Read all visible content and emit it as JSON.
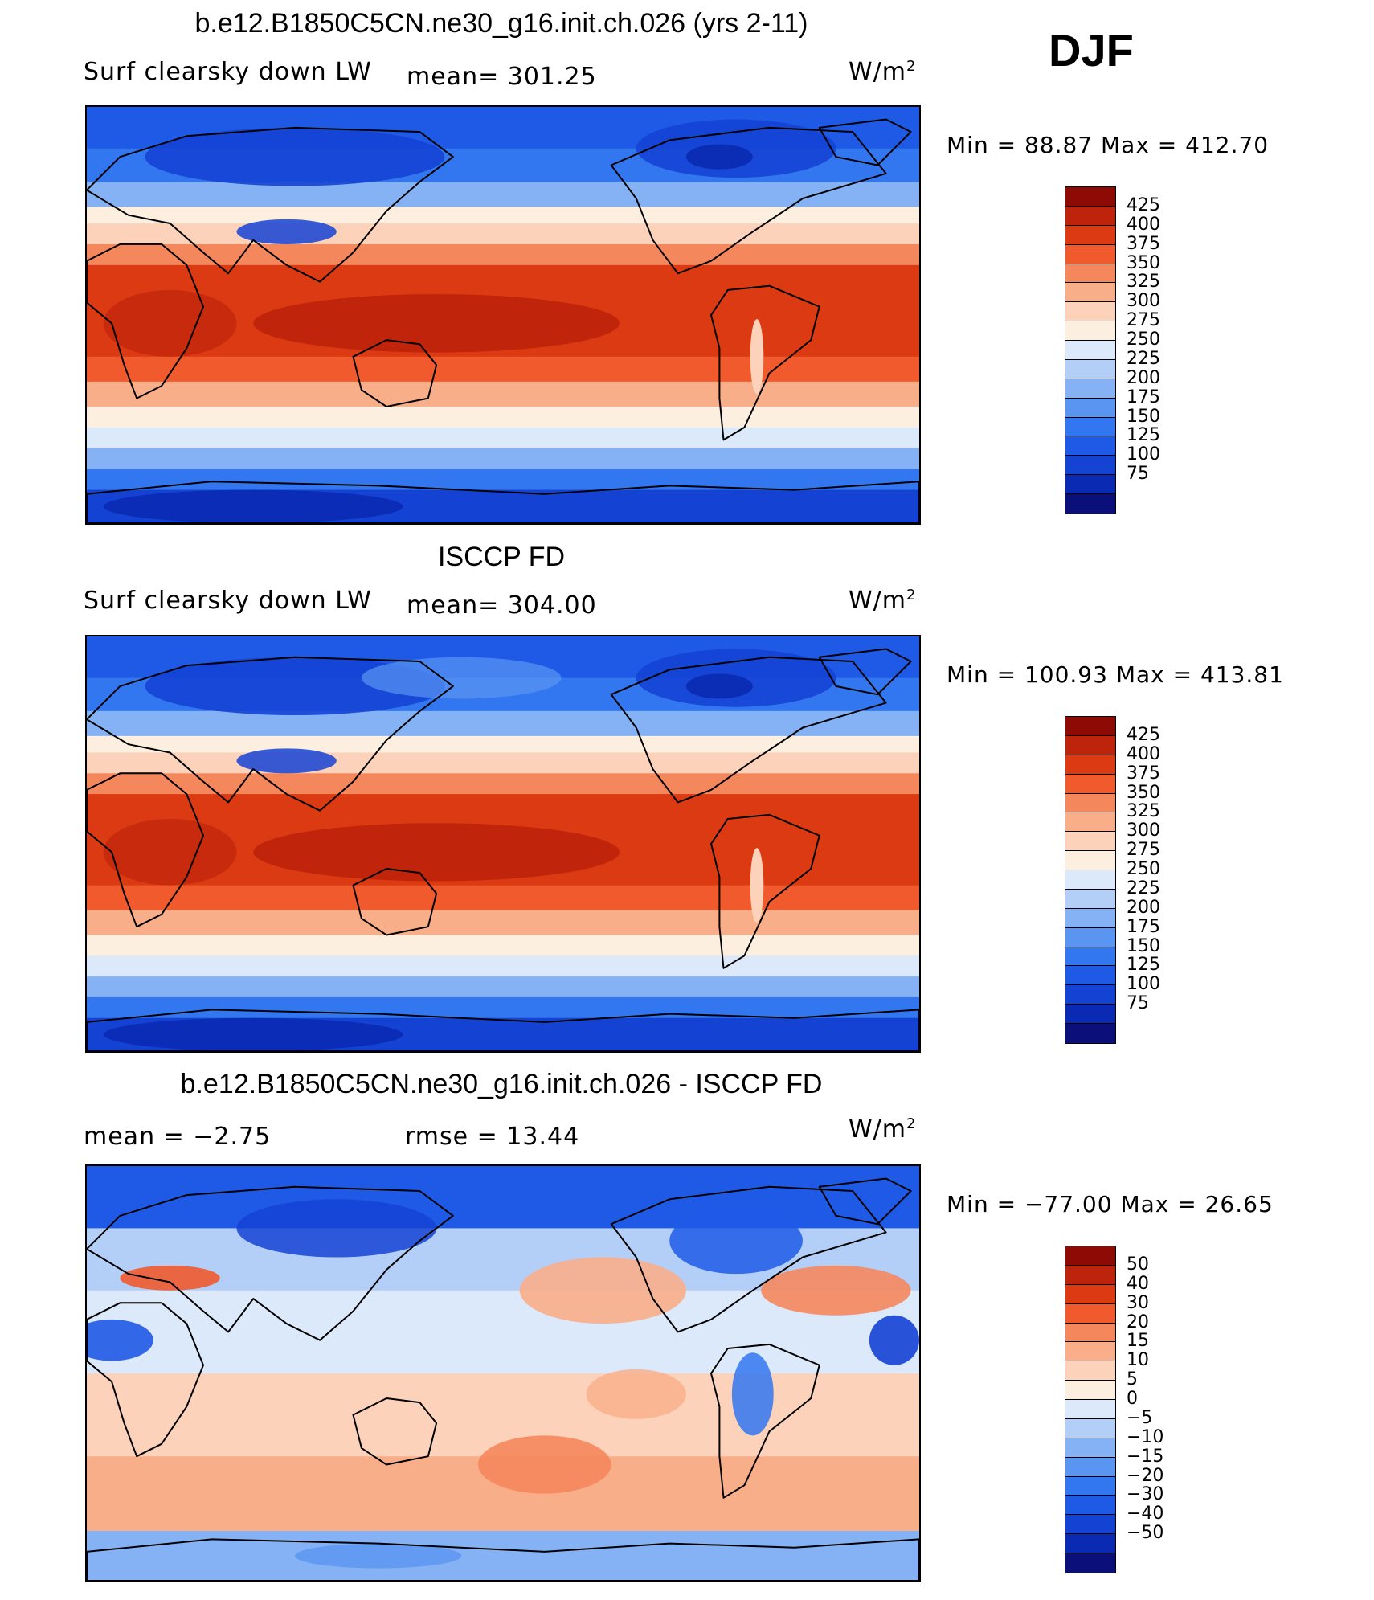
{
  "season": "DJF",
  "palette": [
    "#0a0f7a",
    "#0a2ab3",
    "#1443d4",
    "#1f5ae6",
    "#3377f0",
    "#5a95f2",
    "#85b2f4",
    "#b4cff7",
    "#dce9fb",
    "#fdefe0",
    "#fcd2bb",
    "#f9ae8a",
    "#f5875d",
    "#f05a2d",
    "#dc3a12",
    "#be230b",
    "#8e0a05"
  ],
  "panels": [
    {
      "title": "b.e12.B1850C5CN.ne30_g16.init.ch.026 (yrs 2-11)",
      "left_label": "Surf clearsky down LW",
      "stat_label": "mean= 301.25",
      "units": "W/m",
      "units_sup": "2",
      "minmax": "Min =   88.87 Max = 412.70",
      "colorbar_labels": [
        "425",
        "400",
        "375",
        "350",
        "325",
        "300",
        "275",
        "250",
        "225",
        "200",
        "175",
        "150",
        "125",
        "100",
        "75"
      ]
    },
    {
      "title": "ISCCP FD",
      "left_label": "Surf clearsky down LW",
      "stat_label": "mean= 304.00",
      "units": "W/m",
      "units_sup": "2",
      "minmax": "Min = 100.93 Max = 413.81",
      "colorbar_labels": [
        "425",
        "400",
        "375",
        "350",
        "325",
        "300",
        "275",
        "250",
        "225",
        "200",
        "175",
        "150",
        "125",
        "100",
        "75"
      ]
    },
    {
      "title": "b.e12.B1850C5CN.ne30_g16.init.ch.026 - ISCCP FD",
      "left_label": "mean =   −2.75",
      "stat_label": "rmse =   13.44",
      "units": "W/m",
      "units_sup": "2",
      "minmax": "Min = −77.00 Max =   26.65",
      "colorbar_labels": [
        "50",
        "40",
        "30",
        "20",
        "15",
        "10",
        "5",
        "0",
        "−5",
        "−10",
        "−15",
        "−20",
        "−30",
        "−40",
        "−50"
      ]
    }
  ]
}
